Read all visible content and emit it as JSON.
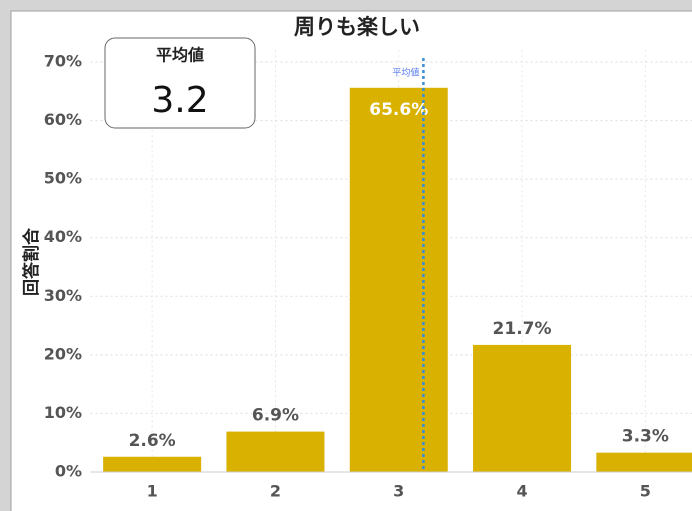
{
  "chart_data": {
    "type": "bar",
    "title": "周りも楽しい",
    "ylabel": "回答割合",
    "categories": [
      "1",
      "2",
      "3",
      "4",
      "5"
    ],
    "values": [
      2.6,
      6.9,
      65.6,
      21.7,
      3.3
    ],
    "value_labels": [
      "2.6%",
      "6.9%",
      "65.6%",
      "21.7%",
      "3.3%"
    ],
    "color": "#d9b100",
    "ylim": [
      0,
      72
    ],
    "yticks": [
      {
        "value": 0,
        "label": "0%"
      },
      {
        "value": 10,
        "label": "10%"
      },
      {
        "value": 20,
        "label": "20%"
      },
      {
        "value": 30,
        "label": "30%"
      },
      {
        "value": 40,
        "label": "40%"
      },
      {
        "value": 50,
        "label": "50%"
      },
      {
        "value": 60,
        "label": "60%"
      },
      {
        "value": 70,
        "label": "70%"
      }
    ],
    "grid": true,
    "mean": {
      "label": "平均値",
      "value": 3.2
    }
  }
}
